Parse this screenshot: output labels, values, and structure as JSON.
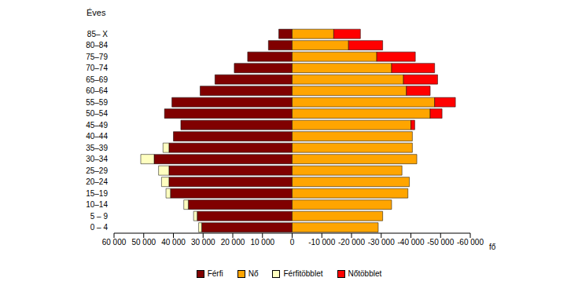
{
  "chart_data": {
    "type": "bar",
    "orientation": "horizontal",
    "stacked": true,
    "grid": false,
    "legend": "bottom",
    "y_label": "Éves",
    "x_label": "fő",
    "categories": [
      "0 – 4",
      "5 – 9",
      "10–14",
      "15–19",
      "20–24",
      "25–29",
      "30–34",
      "35–39",
      "40–44",
      "45–49",
      "50–54",
      "55–59",
      "60–64",
      "65–69",
      "70–74",
      "75–79",
      "80–84",
      "85– X"
    ],
    "series": [
      {
        "name": "Férfi",
        "color": "#800000",
        "values": [
          30500,
          32000,
          35000,
          41000,
          41500,
          41500,
          46500,
          41500,
          40000,
          37500,
          43000,
          40500,
          31000,
          26000,
          19500,
          15000,
          8000,
          4500
        ]
      },
      {
        "name": "Nő",
        "color": "#FFA500",
        "values": [
          -29000,
          -30500,
          -33500,
          -39000,
          -39500,
          -37000,
          -42000,
          -40500,
          -40500,
          -40000,
          -46500,
          -48000,
          -38500,
          -37500,
          -33500,
          -28500,
          -19000,
          -14000
        ]
      },
      {
        "name": "Férfitöbblet",
        "color": "#FFFFC0",
        "values": [
          1000,
          1200,
          1500,
          1500,
          2500,
          3500,
          4500,
          2000,
          0,
          0,
          0,
          0,
          0,
          0,
          0,
          0,
          0,
          0
        ]
      },
      {
        "name": "Nőtöbblet",
        "color": "#FF0000",
        "values": [
          0,
          0,
          0,
          0,
          0,
          0,
          0,
          0,
          0,
          -1300,
          -4000,
          -7000,
          -8000,
          -11500,
          -14500,
          -13000,
          -11500,
          -9000
        ]
      }
    ],
    "xlim": [
      60000,
      -60000
    ],
    "xticks": [
      {
        "value": 60000,
        "label": "60 000"
      },
      {
        "value": 50000,
        "label": "50 000"
      },
      {
        "value": 40000,
        "label": "40 000"
      },
      {
        "value": 30000,
        "label": "30 000"
      },
      {
        "value": 20000,
        "label": "20 000"
      },
      {
        "value": 10000,
        "label": "10 000"
      },
      0,
      {
        "value": -10000,
        "label": "-10 000"
      },
      {
        "value": -20000,
        "label": "-20 000"
      },
      {
        "value": -30000,
        "label": "-30 000"
      },
      {
        "value": -40000,
        "label": "-40 000"
      },
      {
        "value": -50000,
        "label": "-50 000"
      },
      {
        "value": -60000,
        "label": "-60 000"
      }
    ]
  }
}
